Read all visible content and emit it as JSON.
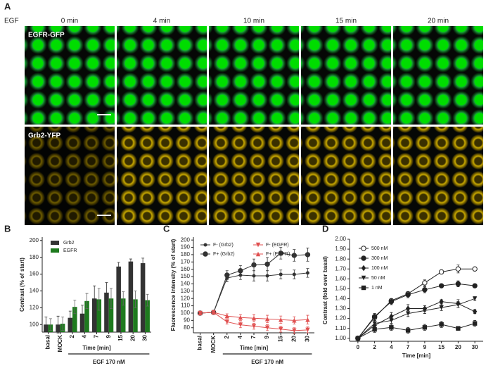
{
  "panel_a": {
    "label": "A",
    "stimulus": "EGF",
    "times": [
      "0 min",
      "4 min",
      "10 min",
      "15 min",
      "20 min"
    ],
    "rows": [
      {
        "label": "EGFR-GFP"
      },
      {
        "label": "Grb2-YFP"
      }
    ]
  },
  "chart_data": [
    {
      "type": "bar",
      "panel": "B",
      "ylabel": "Contrast (% of start)",
      "xlabel": "Time [min]",
      "annotation": "EGF 170 nM",
      "categories": [
        "basal",
        "MOCK",
        "2",
        "4",
        "7",
        "9",
        "15",
        "20",
        "30"
      ],
      "series": [
        {
          "name": "Grb2",
          "color": "#333333",
          "values": [
            100,
            100,
            108,
            113,
            131,
            138,
            169,
            175,
            173
          ],
          "errors": [
            9,
            10,
            8,
            10,
            15,
            12,
            5,
            3,
            6
          ]
        },
        {
          "name": "EGFR",
          "color": "#1e7a1e",
          "values": [
            100,
            101,
            121,
            128,
            130,
            131,
            131,
            130,
            129
          ],
          "errors": [
            7,
            8,
            8,
            9,
            13,
            12,
            8,
            10,
            7
          ]
        }
      ],
      "ylim": [
        91,
        204
      ],
      "yticks": [
        100,
        120,
        140,
        160,
        180,
        200
      ]
    },
    {
      "type": "line",
      "panel": "C",
      "ylabel": "Fluorescence intensity (% of start)",
      "xlabel": "Time [min]",
      "annotation": "EGF 170 nM",
      "categories": [
        "basal",
        "MOCK",
        "2",
        "4",
        "7",
        "9",
        "15",
        "20",
        "30"
      ],
      "series": [
        {
          "name": "F- (Grb2)",
          "color": "#333333",
          "marker": "circle-small",
          "values": [
            100,
            101,
            148,
            152,
            151,
            151,
            153,
            153,
            155
          ],
          "errors": [
            1,
            1,
            5,
            6,
            7,
            7,
            6,
            6,
            6
          ]
        },
        {
          "name": "F+ (Grb2)",
          "color": "#333333",
          "marker": "circle",
          "values": [
            100,
            101,
            152,
            158,
            166,
            167,
            182,
            179,
            180
          ],
          "errors": [
            1,
            1,
            6,
            7,
            8,
            9,
            8,
            8,
            9
          ]
        },
        {
          "name": "F- (EGFR)",
          "color": "#e05050",
          "marker": "triangle-down",
          "values": [
            100,
            101,
            88,
            84,
            82,
            80,
            78,
            76,
            77
          ],
          "errors": [
            1,
            1,
            3,
            4,
            4,
            4,
            4,
            4,
            4
          ]
        },
        {
          "name": "F+ (EGFR)",
          "color": "#e05050",
          "marker": "triangle-up",
          "values": [
            100,
            101,
            96,
            94,
            93,
            92,
            91,
            90,
            91
          ],
          "errors": [
            1,
            1,
            3,
            4,
            5,
            5,
            5,
            5,
            6
          ]
        }
      ],
      "ylim": [
        73,
        204
      ],
      "yticks": [
        80,
        90,
        100,
        110,
        120,
        130,
        140,
        150,
        160,
        170,
        180,
        190,
        200
      ]
    },
    {
      "type": "line",
      "panel": "D",
      "ylabel": "Contrast (fold over basal)",
      "xlabel": "Time [min]",
      "categories": [
        "0",
        "2",
        "4",
        "7",
        "9",
        "15",
        "20",
        "30"
      ],
      "series": [
        {
          "name": "500 nM",
          "color": "#222222",
          "marker": "circle-open",
          "values": [
            1.0,
            1.21,
            1.38,
            1.45,
            1.56,
            1.67,
            1.7,
            1.7
          ],
          "errors": [
            0.005,
            0.03,
            0.02,
            0.02,
            0.03,
            0.02,
            0.04,
            0.01
          ]
        },
        {
          "name": "300 nM",
          "color": "#222222",
          "marker": "circle",
          "values": [
            1.0,
            1.22,
            1.37,
            1.44,
            1.49,
            1.53,
            1.55,
            1.53
          ],
          "errors": [
            0.005,
            0.03,
            0.03,
            0.03,
            0.03,
            0.02,
            0.03,
            0.02
          ]
        },
        {
          "name": "100 nM",
          "color": "#222222",
          "marker": "diamond",
          "values": [
            1.0,
            1.13,
            1.22,
            1.3,
            1.3,
            1.37,
            1.35,
            1.27
          ],
          "errors": [
            0.005,
            0.03,
            0.04,
            0.04,
            0.03,
            0.02,
            0.04,
            0.02
          ]
        },
        {
          "name": "50 nM",
          "color": "#222222",
          "marker": "triangle-down",
          "values": [
            1.0,
            1.15,
            1.18,
            1.25,
            1.28,
            1.31,
            1.34,
            1.4
          ],
          "errors": [
            0.005,
            0.03,
            0.03,
            0.03,
            0.03,
            0.03,
            0.03,
            0.02
          ]
        },
        {
          "name": "1 nM",
          "color": "#222222",
          "marker": "square",
          "values": [
            1.0,
            1.09,
            1.11,
            1.08,
            1.11,
            1.14,
            1.1,
            1.15
          ],
          "errors": [
            0.005,
            0.03,
            0.03,
            0.03,
            0.03,
            0.03,
            0.02,
            0.03
          ]
        }
      ],
      "ylim": [
        0.97,
        2.0
      ],
      "yticks": [
        {
          "value": 1.0,
          "label": "1.00"
        },
        {
          "value": 1.1,
          "label": "1.10"
        },
        {
          "value": 1.2,
          "label": "1.20"
        },
        {
          "value": 1.3,
          "label": "1.30"
        },
        {
          "value": 1.4,
          "label": "1.40"
        },
        {
          "value": 1.5,
          "label": "1.50"
        },
        {
          "value": 1.6,
          "label": "1.60"
        },
        {
          "value": 1.7,
          "label": "1.70"
        },
        {
          "value": 1.8,
          "label": "1.80"
        },
        {
          "value": 1.9,
          "label": "1.90"
        },
        {
          "value": 2.0,
          "label": "2.00"
        }
      ]
    }
  ]
}
